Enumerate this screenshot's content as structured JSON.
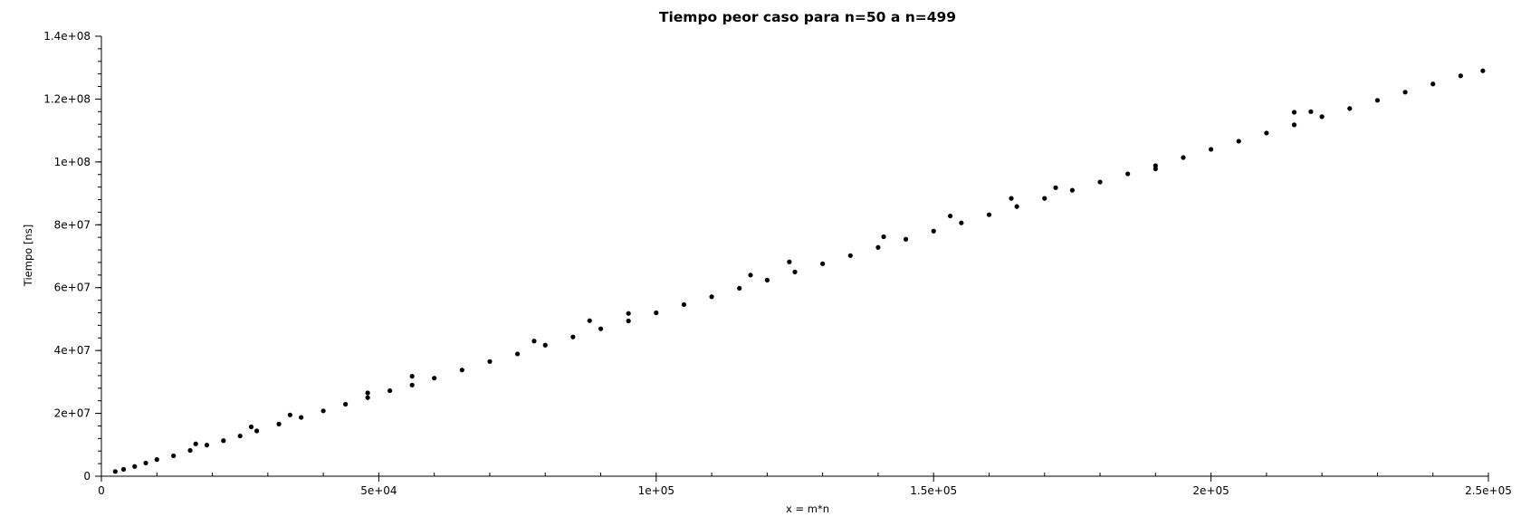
{
  "chart_data": {
    "type": "scatter",
    "title": "Tiempo peor caso para n=50 a n=499",
    "xlabel": "x = m*n",
    "ylabel": "Tiempo [ns]",
    "xlim": [
      0,
      250000
    ],
    "ylim": [
      0,
      140000000
    ],
    "x_ticks": [
      0,
      50000,
      100000,
      150000,
      200000,
      250000
    ],
    "x_tick_labels": [
      "0",
      "5e+04",
      "1e+05",
      "1.5e+05",
      "2e+05",
      "2.5e+05"
    ],
    "y_ticks": [
      0,
      20000000,
      40000000,
      60000000,
      80000000,
      100000000,
      120000000,
      140000000
    ],
    "y_tick_labels": [
      "0",
      "2e+07",
      "4e+07",
      "6e+07",
      "8e+07",
      "1e+08",
      "1.2e+08",
      "1.4e+08"
    ],
    "grid": false,
    "marker_color": "#000000",
    "series": [
      {
        "x": [
          2500,
          4000,
          6000,
          8000,
          10000,
          13000,
          16000,
          19000,
          22000,
          25000,
          28000,
          32000,
          36000,
          40000,
          44000,
          48000,
          52000,
          56000,
          60000,
          65000,
          70000,
          75000,
          80000,
          85000,
          90000,
          95000,
          100000,
          105000,
          110000,
          115000,
          120000,
          125000,
          130000,
          135000,
          140000,
          145000,
          150000,
          155000,
          160000,
          165000,
          170000,
          175000,
          180000,
          185000,
          190000,
          195000,
          200000,
          205000,
          210000,
          215000,
          220000,
          225000,
          230000,
          235000,
          240000,
          245000,
          249000,
          17000,
          27000,
          34000,
          48000,
          56000,
          78000,
          88000,
          95000,
          117000,
          124000,
          141000,
          153000,
          164000,
          172000,
          190000,
          215000,
          218000
        ],
        "y": [
          1500000,
          2200000,
          3100000,
          4200000,
          5300000,
          6500000,
          8200000,
          9900000,
          11300000,
          12800000,
          14400000,
          16600000,
          18700000,
          20800000,
          22900000,
          25000000,
          27200000,
          29000000,
          31200000,
          33800000,
          36500000,
          38900000,
          41700000,
          44300000,
          46900000,
          49400000,
          52000000,
          54600000,
          57100000,
          59800000,
          62400000,
          65000000,
          67600000,
          70200000,
          72800000,
          75400000,
          78000000,
          80600000,
          83200000,
          85800000,
          88400000,
          91000000,
          93600000,
          96200000,
          98800000,
          101400000,
          104000000,
          106600000,
          109200000,
          111800000,
          114400000,
          117000000,
          119600000,
          122200000,
          124800000,
          127400000,
          129000000,
          10300000,
          15700000,
          19500000,
          26500000,
          31800000,
          43000000,
          49500000,
          51800000,
          64000000,
          68200000,
          76200000,
          82800000,
          88400000,
          91800000,
          97800000,
          115800000,
          116000000
        ]
      }
    ]
  }
}
